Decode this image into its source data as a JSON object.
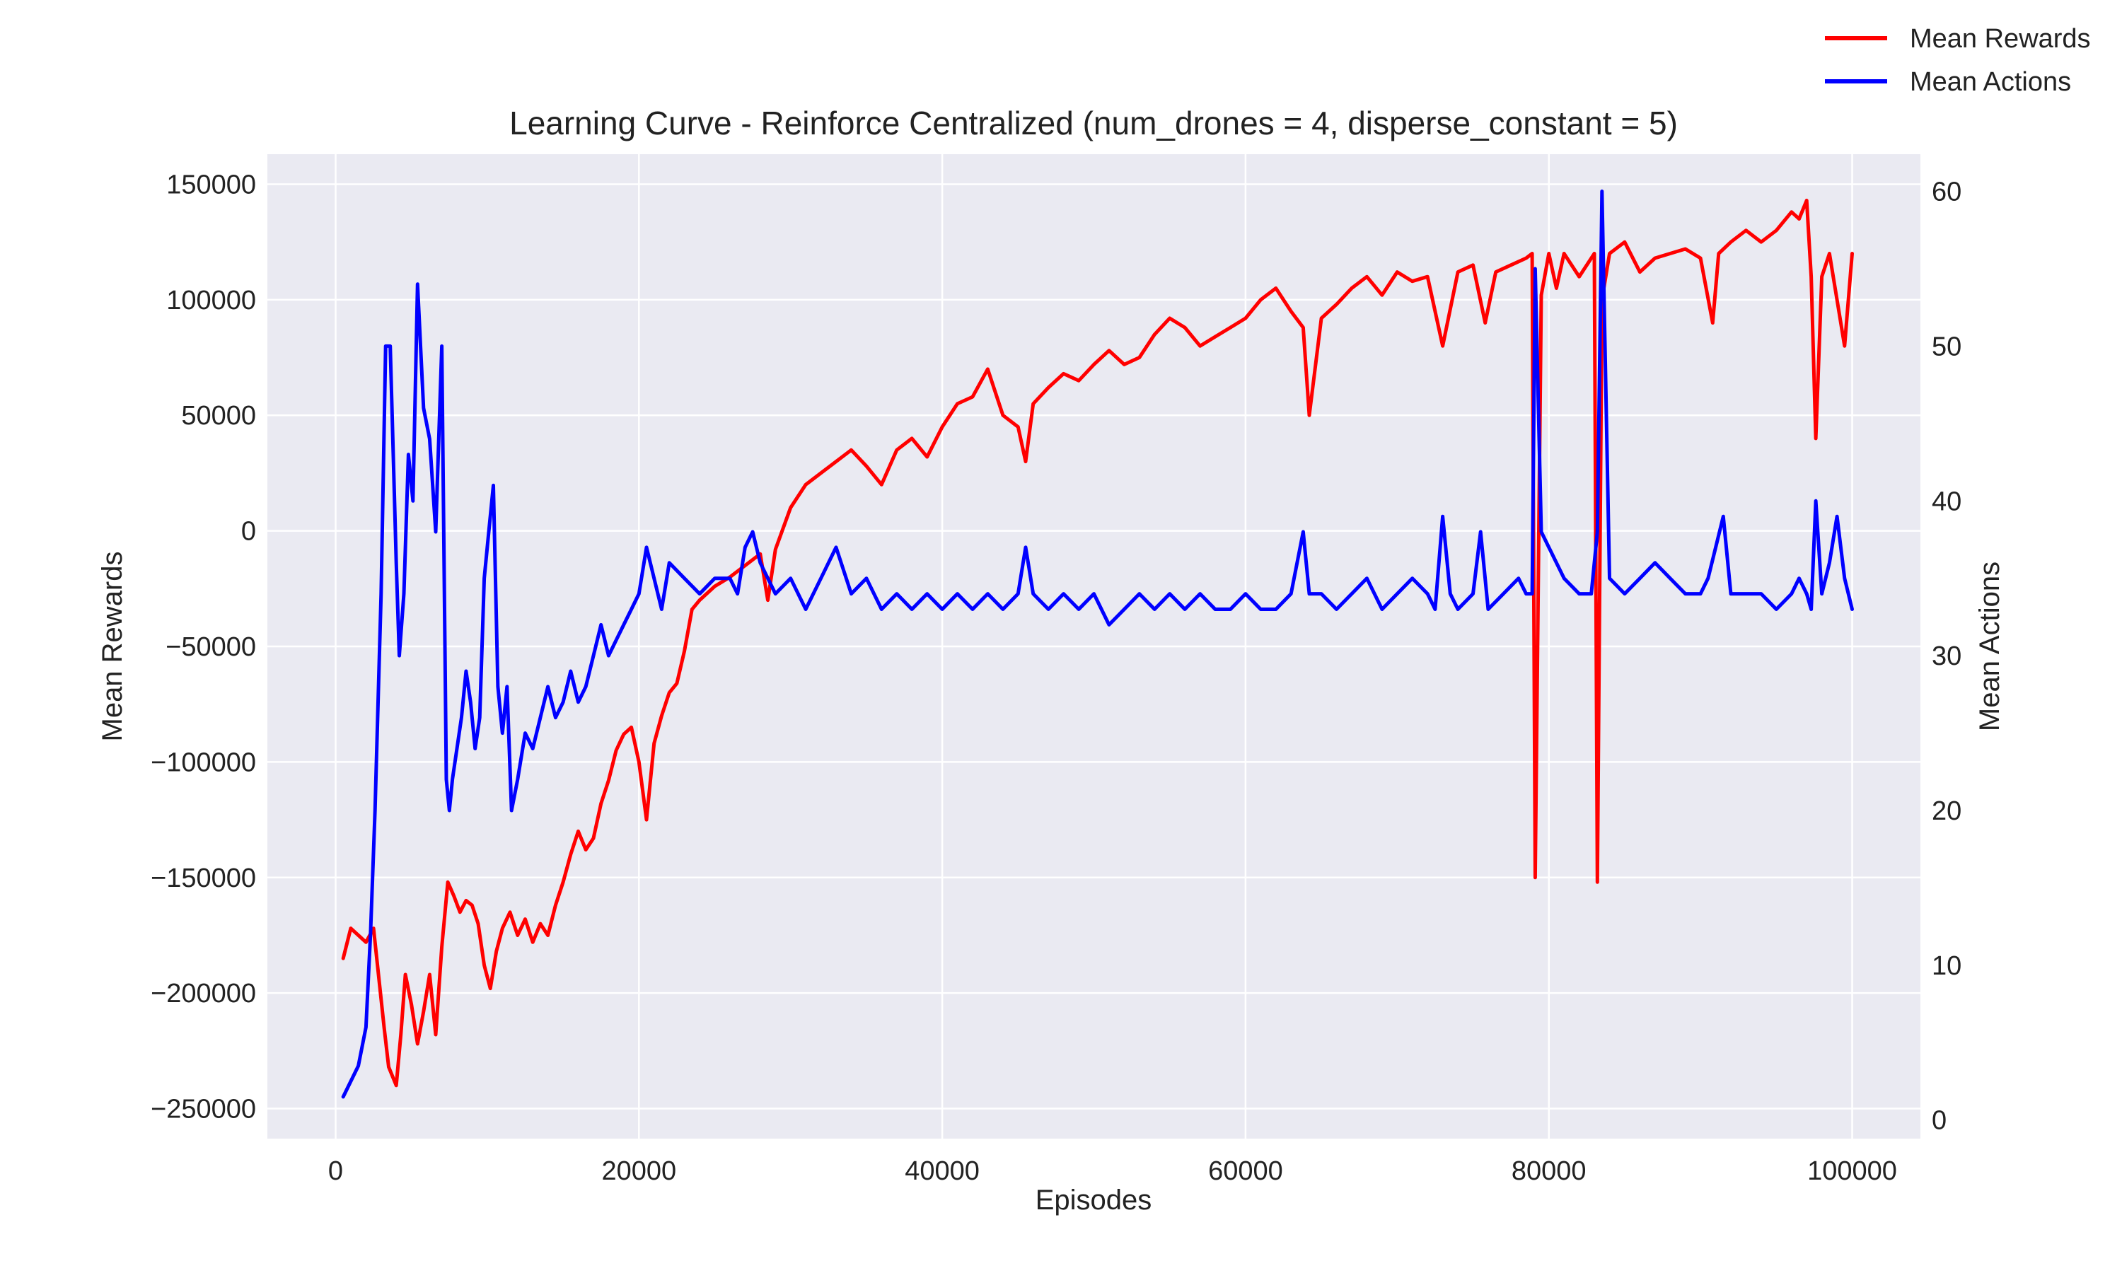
{
  "chart_data": {
    "type": "line",
    "title": "Learning Curve - Reinforce Centralized (num_drones = 4, disperse_constant = 5)",
    "xlabel": "Episodes",
    "ylabel_left": "Mean Rewards",
    "ylabel_right": "Mean Actions",
    "xlim": [
      -4500,
      104500
    ],
    "ylim_left": [
      -263000,
      163000
    ],
    "ylim_right": [
      -1.2,
      62.4
    ],
    "xticks": [
      0,
      20000,
      40000,
      60000,
      80000,
      100000
    ],
    "xtick_labels": [
      "0",
      "20000",
      "40000",
      "60000",
      "80000",
      "100000"
    ],
    "yticks_left": [
      150000,
      100000,
      50000,
      0,
      -50000,
      -100000,
      -150000,
      -200000,
      -250000
    ],
    "ytick_labels_left": [
      "150000",
      "100000",
      "50000",
      "0",
      "−50000",
      "−100000",
      "−150000",
      "−200000",
      "−250000"
    ],
    "yticks_right": [
      60,
      50,
      40,
      30,
      20,
      10,
      0
    ],
    "ytick_labels_right": [
      "60",
      "50",
      "40",
      "30",
      "20",
      "10",
      "0"
    ],
    "grid": true,
    "legend": {
      "placement": "top-right",
      "entries": [
        "Mean Rewards",
        "Mean Actions"
      ]
    },
    "colors": {
      "rewards": "#ff0000",
      "actions": "#0000ff",
      "plot_bg": "#eaeaf2",
      "grid": "#ffffff"
    },
    "series": [
      {
        "name": "Mean Rewards",
        "axis": "left",
        "color": "#ff0000",
        "x": [
          500,
          1000,
          2000,
          2500,
          3200,
          3500,
          4000,
          4300,
          4600,
          5000,
          5400,
          5800,
          6200,
          6600,
          7000,
          7400,
          7800,
          8200,
          8600,
          9000,
          9400,
          9800,
          10200,
          10600,
          11000,
          11500,
          12000,
          12500,
          13000,
          13500,
          14000,
          14500,
          15000,
          15500,
          16000,
          16500,
          17000,
          17500,
          18000,
          18500,
          19000,
          19500,
          20000,
          20500,
          21000,
          21500,
          22000,
          22500,
          23000,
          23500,
          24000,
          25000,
          26000,
          27000,
          28000,
          28500,
          29000,
          30000,
          31000,
          32000,
          33000,
          34000,
          35000,
          36000,
          37000,
          38000,
          39000,
          40000,
          41000,
          42000,
          43000,
          44000,
          45000,
          45500,
          46000,
          47000,
          48000,
          49000,
          50000,
          51000,
          52000,
          53000,
          54000,
          55000,
          56000,
          57000,
          58000,
          59000,
          60000,
          61000,
          62000,
          63000,
          63800,
          64200,
          65000,
          66000,
          67000,
          68000,
          69000,
          70000,
          71000,
          72000,
          73000,
          74000,
          75000,
          75800,
          76500,
          77500,
          78500,
          78900,
          79100,
          79500,
          80000,
          80500,
          81000,
          82000,
          83000,
          83200,
          83500,
          84000,
          85000,
          86000,
          87000,
          88000,
          89000,
          90000,
          90800,
          91200,
          92000,
          93000,
          94000,
          95000,
          96000,
          96500,
          97000,
          97300,
          97600,
          98000,
          98500,
          99000,
          99500,
          100000
        ],
        "values": [
          -185000,
          -172000,
          -178000,
          -172000,
          -215000,
          -232000,
          -240000,
          -218000,
          -192000,
          -205000,
          -222000,
          -208000,
          -192000,
          -218000,
          -180000,
          -152000,
          -158000,
          -165000,
          -160000,
          -162000,
          -170000,
          -188000,
          -198000,
          -182000,
          -172000,
          -165000,
          -175000,
          -168000,
          -178000,
          -170000,
          -175000,
          -162000,
          -152000,
          -140000,
          -130000,
          -138000,
          -133000,
          -118000,
          -108000,
          -95000,
          -88000,
          -85000,
          -100000,
          -125000,
          -92000,
          -80000,
          -70000,
          -66000,
          -52000,
          -34000,
          -30000,
          -24000,
          -20000,
          -15000,
          -10000,
          -30000,
          -8000,
          10000,
          20000,
          25000,
          30000,
          35000,
          28000,
          20000,
          35000,
          40000,
          32000,
          45000,
          55000,
          58000,
          70000,
          50000,
          45000,
          30000,
          55000,
          62000,
          68000,
          65000,
          72000,
          78000,
          72000,
          75000,
          85000,
          92000,
          88000,
          80000,
          84000,
          88000,
          92000,
          100000,
          105000,
          95000,
          88000,
          50000,
          92000,
          98000,
          105000,
          110000,
          102000,
          112000,
          108000,
          110000,
          80000,
          112000,
          115000,
          90000,
          112000,
          115000,
          118000,
          120000,
          -150000,
          102000,
          120000,
          105000,
          120000,
          110000,
          120000,
          -152000,
          100000,
          120000,
          125000,
          112000,
          118000,
          120000,
          122000,
          118000,
          90000,
          120000,
          125000,
          130000,
          125000,
          130000,
          138000,
          135000,
          143000,
          110000,
          40000,
          110000,
          120000,
          100000,
          80000,
          120000
        ]
      },
      {
        "name": "Mean Actions",
        "axis": "right",
        "color": "#0000ff",
        "x": [
          500,
          1000,
          1500,
          2000,
          2300,
          2600,
          3000,
          3300,
          3600,
          4000,
          4200,
          4500,
          4800,
          5100,
          5400,
          5800,
          6200,
          6600,
          7000,
          7300,
          7500,
          7700,
          8000,
          8300,
          8600,
          8900,
          9200,
          9500,
          9800,
          10100,
          10400,
          10700,
          11000,
          11300,
          11600,
          12000,
          12500,
          13000,
          13500,
          14000,
          14500,
          15000,
          15500,
          16000,
          16500,
          17000,
          17500,
          18000,
          18500,
          19000,
          19500,
          20000,
          20500,
          21000,
          21500,
          22000,
          23000,
          24000,
          25000,
          26000,
          26500,
          27000,
          27500,
          28000,
          28500,
          29000,
          30000,
          31000,
          32000,
          33000,
          34000,
          35000,
          36000,
          37000,
          38000,
          39000,
          40000,
          41000,
          42000,
          43000,
          44000,
          45000,
          45500,
          46000,
          47000,
          48000,
          49000,
          50000,
          51000,
          52000,
          53000,
          54000,
          55000,
          56000,
          57000,
          58000,
          59000,
          60000,
          61000,
          62000,
          63000,
          63800,
          64200,
          65000,
          66000,
          67000,
          68000,
          69000,
          70000,
          71000,
          72000,
          72500,
          73000,
          73500,
          74000,
          75000,
          75500,
          76000,
          77000,
          78000,
          78500,
          78900,
          79100,
          79500,
          80000,
          81000,
          82000,
          82800,
          83200,
          83500,
          84000,
          85000,
          86000,
          87000,
          88000,
          89000,
          90000,
          90500,
          91000,
          91500,
          92000,
          93000,
          94000,
          95000,
          96000,
          96500,
          97000,
          97300,
          97600,
          98000,
          98500,
          99000,
          99500,
          100000
        ],
        "values": [
          1.5,
          2.5,
          3.5,
          6,
          12,
          20,
          34,
          50,
          50,
          36,
          30,
          34,
          43,
          40,
          54,
          46,
          44,
          38,
          50,
          22,
          20,
          22,
          24,
          26,
          29,
          27,
          24,
          26,
          35,
          38,
          41,
          28,
          25,
          28,
          20,
          22,
          25,
          24,
          26,
          28,
          26,
          27,
          29,
          27,
          28,
          30,
          32,
          30,
          31,
          32,
          33,
          34,
          37,
          35,
          33,
          36,
          35,
          34,
          35,
          35,
          34,
          37,
          38,
          36,
          35,
          34,
          35,
          33,
          35,
          37,
          34,
          35,
          33,
          34,
          33,
          34,
          33,
          34,
          33,
          34,
          33,
          34,
          37,
          34,
          33,
          34,
          33,
          34,
          32,
          33,
          34,
          33,
          34,
          33,
          34,
          33,
          33,
          34,
          33,
          33,
          34,
          38,
          34,
          34,
          33,
          34,
          35,
          33,
          34,
          35,
          34,
          33,
          39,
          34,
          33,
          34,
          38,
          33,
          34,
          35,
          34,
          34,
          55,
          38,
          37,
          35,
          34,
          34,
          38,
          60,
          35,
          34,
          35,
          36,
          35,
          34,
          34,
          35,
          37,
          39,
          34,
          34,
          34,
          33,
          34,
          35,
          34,
          33,
          40,
          34,
          36,
          39,
          35,
          33
        ]
      }
    ]
  }
}
